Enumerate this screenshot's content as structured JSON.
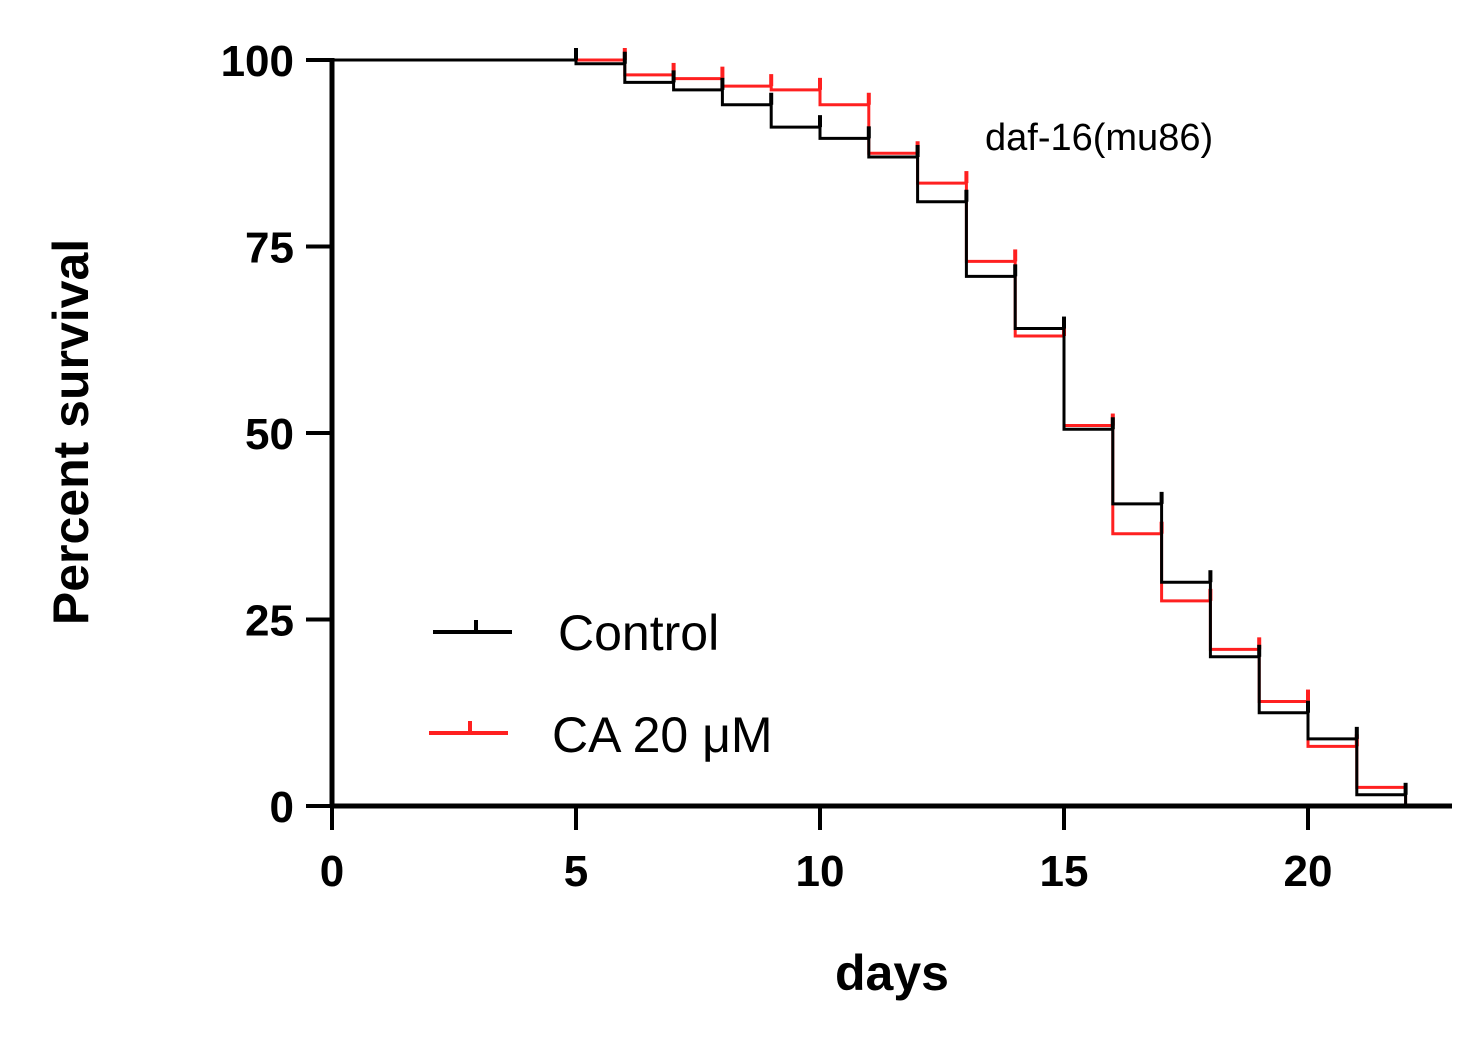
{
  "chart_data": {
    "type": "line",
    "subtype": "kaplan-meier-step",
    "title": "",
    "annotation": "daf-16(mu86)",
    "xlabel": "days",
    "ylabel": "Percent survival",
    "xlim": [
      0,
      23
    ],
    "ylim": [
      0,
      100
    ],
    "x_ticks": [
      0,
      5,
      10,
      15,
      20
    ],
    "y_ticks": [
      0,
      25,
      50,
      75,
      100
    ],
    "grid": false,
    "legend_position": "bottom-left",
    "series": [
      {
        "name": "Control",
        "color": "#000000",
        "x": [
          0,
          5,
          6,
          7,
          8,
          9,
          10,
          11,
          12,
          13,
          14,
          15,
          16,
          17,
          18,
          19,
          20,
          21,
          22
        ],
        "y": [
          100,
          99.5,
          97,
          96,
          94,
          91,
          89.5,
          87,
          81,
          71,
          64,
          50.5,
          40.5,
          30,
          20,
          12.5,
          9,
          1.5,
          0
        ],
        "censor_x": [
          5,
          6,
          7,
          8,
          9,
          10,
          11,
          12,
          13,
          14,
          15,
          16,
          17,
          18,
          19,
          20,
          21,
          22
        ]
      },
      {
        "name": "CA 20 μM",
        "color": "#ff2020",
        "x": [
          0,
          6,
          7,
          8,
          9,
          10,
          11,
          12,
          13,
          14,
          15,
          16,
          17,
          18,
          19,
          20,
          21,
          22
        ],
        "y": [
          100,
          98,
          97.5,
          96.5,
          96,
          94,
          87.5,
          83.5,
          73,
          63,
          51,
          36.5,
          27.5,
          21,
          14,
          8,
          2.5,
          0
        ],
        "censor_x": [
          6,
          7,
          8,
          9,
          10,
          11,
          12,
          13,
          14,
          15,
          16,
          17,
          18,
          19,
          20,
          21
        ]
      }
    ]
  }
}
